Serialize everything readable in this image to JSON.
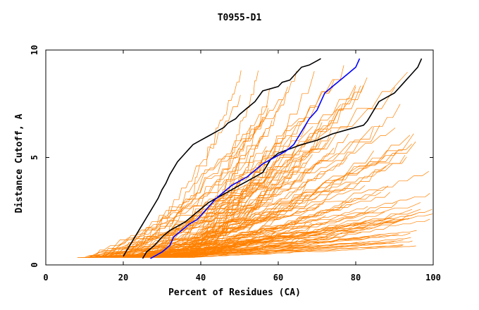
{
  "chart_data": {
    "type": "line",
    "title": "T0955-D1",
    "xlabel": "Percent of Residues (CA)",
    "ylabel": "Distance Cutoff, A",
    "xlim": [
      0,
      100
    ],
    "ylim": [
      0,
      10
    ],
    "x_ticks": [
      "0",
      "20",
      "40",
      "60",
      "80",
      "100"
    ],
    "y_ticks": [
      "0",
      "5",
      "10"
    ],
    "grid": false,
    "background_curves": {
      "count": 140,
      "color": "#ff8000",
      "style": "thin orange staircase curves spanning 8%–100% of residues"
    },
    "series": [
      {
        "color": "#000000",
        "x": [
          20,
          21,
          22,
          23,
          24,
          25,
          26,
          27,
          28,
          29,
          30,
          31,
          32,
          33,
          34,
          35,
          36,
          37,
          38,
          40,
          42,
          44,
          46,
          47,
          49,
          50,
          52,
          54,
          56,
          60,
          61,
          63,
          64,
          65,
          66,
          68,
          70,
          71
        ],
        "y": [
          0.4,
          0.7,
          1.0,
          1.3,
          1.6,
          1.9,
          2.2,
          2.5,
          2.8,
          3.1,
          3.5,
          3.8,
          4.2,
          4.5,
          4.8,
          5.0,
          5.2,
          5.4,
          5.6,
          5.8,
          6.0,
          6.2,
          6.4,
          6.6,
          6.8,
          7.0,
          7.3,
          7.6,
          8.1,
          8.3,
          8.5,
          8.6,
          8.8,
          9.0,
          9.2,
          9.3,
          9.5,
          9.6
        ]
      },
      {
        "color": "#000000",
        "x": [
          25,
          26,
          28,
          30,
          32,
          34,
          36,
          38,
          40,
          42,
          44,
          46,
          48,
          50,
          52,
          54,
          56,
          57,
          58,
          60,
          63,
          66,
          70,
          74,
          78,
          82,
          83,
          84,
          85,
          86,
          88,
          90,
          91,
          92,
          93,
          94,
          95,
          96,
          97
        ],
        "y": [
          0.3,
          0.6,
          0.9,
          1.3,
          1.6,
          1.8,
          2.0,
          2.3,
          2.6,
          2.9,
          3.1,
          3.3,
          3.5,
          3.7,
          3.9,
          4.1,
          4.3,
          4.6,
          4.9,
          5.2,
          5.4,
          5.6,
          5.8,
          6.1,
          6.3,
          6.5,
          6.7,
          7.0,
          7.3,
          7.6,
          7.8,
          8.0,
          8.2,
          8.4,
          8.6,
          8.8,
          9.0,
          9.2,
          9.6
        ]
      },
      {
        "color": "#0000ff",
        "x": [
          27,
          30,
          32,
          33,
          35,
          37,
          39,
          40,
          41,
          42,
          43,
          44,
          46,
          48,
          50,
          52,
          54,
          56,
          58,
          60,
          62,
          64,
          65,
          66,
          67,
          68,
          70,
          71,
          72,
          74,
          76,
          78,
          80,
          81
        ],
        "y": [
          0.3,
          0.6,
          0.9,
          1.3,
          1.6,
          1.9,
          2.1,
          2.3,
          2.5,
          2.7,
          2.9,
          3.1,
          3.4,
          3.7,
          3.9,
          4.1,
          4.4,
          4.7,
          4.9,
          5.1,
          5.3,
          5.6,
          5.9,
          6.2,
          6.5,
          6.8,
          7.2,
          7.6,
          8.0,
          8.3,
          8.6,
          8.9,
          9.2,
          9.6
        ]
      }
    ]
  }
}
